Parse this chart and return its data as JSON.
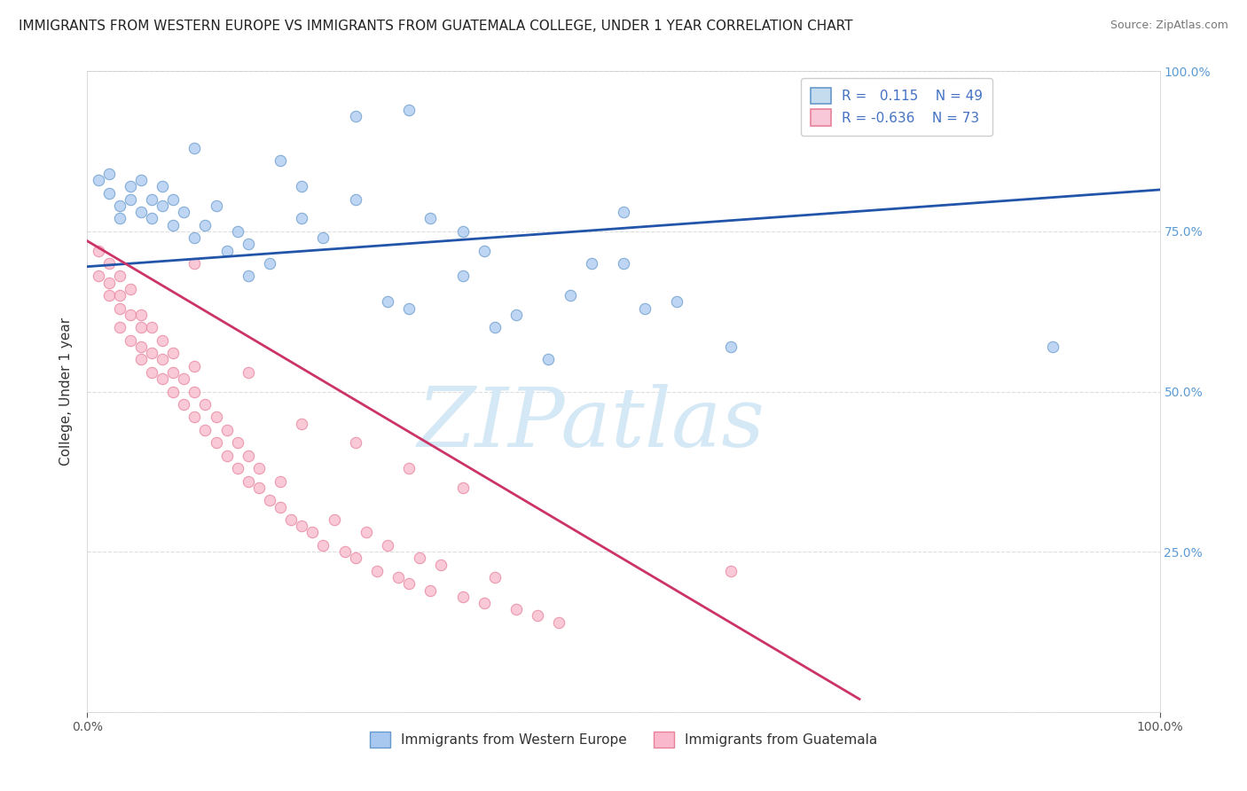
{
  "title": "IMMIGRANTS FROM WESTERN EUROPE VS IMMIGRANTS FROM GUATEMALA COLLEGE, UNDER 1 YEAR CORRELATION CHART",
  "source": "Source: ZipAtlas.com",
  "ylabel": "College, Under 1 year",
  "xlim": [
    0.0,
    1.0
  ],
  "ylim": [
    0.0,
    1.0
  ],
  "series_blue": {
    "label": "Immigrants from Western Europe",
    "R": "0.115",
    "N": "49",
    "color": "#A8C8F0",
    "edge_color": "#6699CC",
    "marker_size": 80,
    "x": [
      0.01,
      0.02,
      0.02,
      0.03,
      0.03,
      0.04,
      0.04,
      0.05,
      0.05,
      0.06,
      0.06,
      0.07,
      0.07,
      0.08,
      0.08,
      0.09,
      0.1,
      0.11,
      0.12,
      0.13,
      0.14,
      0.15,
      0.17,
      0.18,
      0.2,
      0.22,
      0.25,
      0.28,
      0.3,
      0.32,
      0.35,
      0.37,
      0.38,
      0.4,
      0.43,
      0.45,
      0.47,
      0.5,
      0.52,
      0.55,
      0.1,
      0.15,
      0.2,
      0.25,
      0.3,
      0.35,
      0.5,
      0.6,
      0.9
    ],
    "y": [
      0.83,
      0.81,
      0.84,
      0.79,
      0.77,
      0.82,
      0.8,
      0.83,
      0.78,
      0.8,
      0.77,
      0.79,
      0.82,
      0.76,
      0.8,
      0.78,
      0.74,
      0.76,
      0.79,
      0.72,
      0.75,
      0.73,
      0.7,
      0.86,
      0.77,
      0.74,
      0.8,
      0.64,
      0.63,
      0.77,
      0.68,
      0.72,
      0.6,
      0.62,
      0.55,
      0.65,
      0.7,
      0.78,
      0.63,
      0.64,
      0.88,
      0.68,
      0.82,
      0.93,
      0.94,
      0.75,
      0.7,
      0.57,
      0.57
    ]
  },
  "series_pink": {
    "label": "Immigrants from Guatemala",
    "R": "-0.636",
    "N": "73",
    "color": "#F9B8CC",
    "edge_color": "#E8809A",
    "marker_size": 80,
    "x": [
      0.01,
      0.01,
      0.02,
      0.02,
      0.02,
      0.03,
      0.03,
      0.03,
      0.03,
      0.04,
      0.04,
      0.04,
      0.05,
      0.05,
      0.05,
      0.05,
      0.06,
      0.06,
      0.06,
      0.07,
      0.07,
      0.07,
      0.08,
      0.08,
      0.08,
      0.09,
      0.09,
      0.1,
      0.1,
      0.1,
      0.11,
      0.11,
      0.12,
      0.12,
      0.13,
      0.13,
      0.14,
      0.14,
      0.15,
      0.15,
      0.16,
      0.16,
      0.17,
      0.18,
      0.18,
      0.19,
      0.2,
      0.21,
      0.22,
      0.23,
      0.24,
      0.25,
      0.26,
      0.27,
      0.28,
      0.29,
      0.3,
      0.31,
      0.32,
      0.33,
      0.35,
      0.37,
      0.38,
      0.4,
      0.42,
      0.44,
      0.25,
      0.3,
      0.35,
      0.15,
      0.2,
      0.1,
      0.6
    ],
    "y": [
      0.72,
      0.68,
      0.65,
      0.7,
      0.67,
      0.63,
      0.6,
      0.65,
      0.68,
      0.58,
      0.62,
      0.66,
      0.55,
      0.6,
      0.57,
      0.62,
      0.53,
      0.56,
      0.6,
      0.52,
      0.55,
      0.58,
      0.5,
      0.53,
      0.56,
      0.48,
      0.52,
      0.46,
      0.5,
      0.54,
      0.44,
      0.48,
      0.42,
      0.46,
      0.4,
      0.44,
      0.38,
      0.42,
      0.36,
      0.4,
      0.35,
      0.38,
      0.33,
      0.32,
      0.36,
      0.3,
      0.29,
      0.28,
      0.26,
      0.3,
      0.25,
      0.24,
      0.28,
      0.22,
      0.26,
      0.21,
      0.2,
      0.24,
      0.19,
      0.23,
      0.18,
      0.17,
      0.21,
      0.16,
      0.15,
      0.14,
      0.42,
      0.38,
      0.35,
      0.53,
      0.45,
      0.7,
      0.22
    ]
  },
  "trend_blue": {
    "color": "#2255AA",
    "x_start": 0.0,
    "x_end": 1.0,
    "y_start": 0.695,
    "y_end": 0.815,
    "linewidth": 2.0
  },
  "trend_pink": {
    "color": "#CC3366",
    "x_start": 0.0,
    "x_end": 0.72,
    "y_start": 0.735,
    "y_end": 0.02,
    "linewidth": 2.0
  },
  "legend": {
    "R1": "0.115",
    "N1": "49",
    "R2": "-0.636",
    "N2": "73",
    "color1": "#C5DCEE",
    "color2": "#F9C8D8",
    "edge1": "#6699CC",
    "edge2": "#E8809A"
  },
  "watermark": "ZIPatlas",
  "watermark_color": "#D5E8F5",
  "background_color": "#FFFFFF",
  "grid_color": "#DDDDDD",
  "title_fontsize": 11,
  "axis_label_fontsize": 11,
  "tick_fontsize": 10,
  "right_tick_color": "#5B9BD5"
}
